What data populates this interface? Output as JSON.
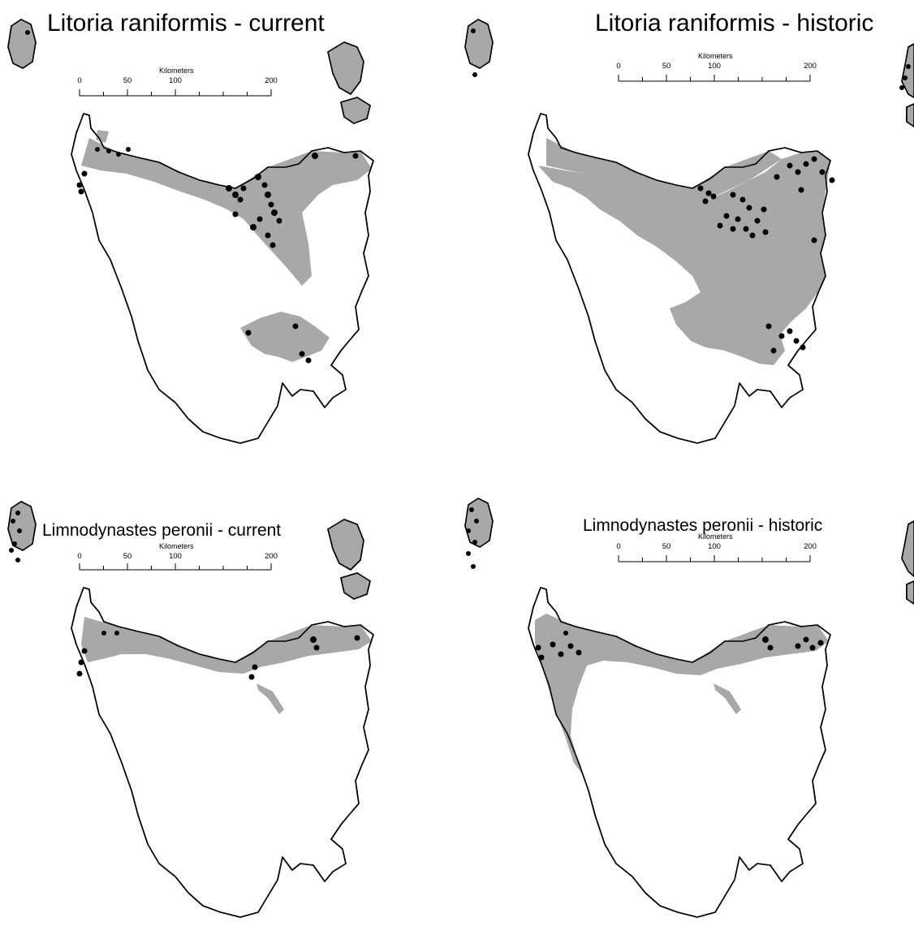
{
  "colors": {
    "habitat": "#a8a8a8",
    "records": "#000000",
    "coast": "#000000",
    "background": "#ffffff"
  },
  "panels": [
    {
      "title": "Litoria raniformis - current",
      "scalebar": {
        "unit": "Kilometers",
        "ticks": [
          "0",
          "50",
          "100",
          "200"
        ]
      },
      "habitat": "north-coast, north-east, midlands, south-east (Derwent)"
    },
    {
      "title": "Litoria raniformis - historic",
      "scalebar": {
        "unit": "Kilometers",
        "ticks": [
          "0",
          "50",
          "100",
          "200"
        ]
      },
      "habitat": "north, north-east, midlands, east coast, south-east"
    },
    {
      "title": "Limnodynastes peronii - current",
      "scalebar": {
        "unit": "Kilometers",
        "ticks": [
          "0",
          "50",
          "100",
          "200"
        ]
      },
      "habitat": "north-coast strip, north-east, Tamar"
    },
    {
      "title": "Limnodynastes peronii - historic",
      "scalebar": {
        "unit": "Kilometers",
        "ticks": [
          "0",
          "50",
          "100",
          "200"
        ]
      },
      "habitat": "north-west, north-coast strip, north-east, west coast"
    }
  ]
}
